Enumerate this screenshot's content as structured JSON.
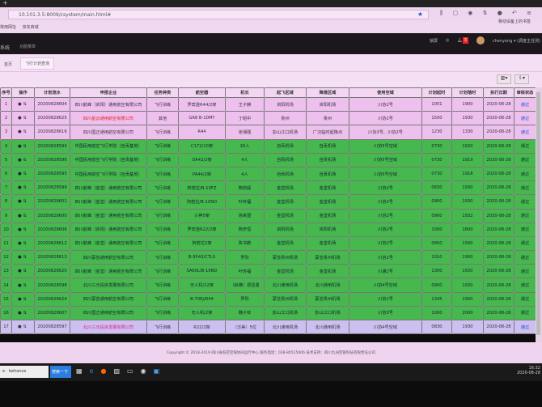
{
  "browser": {
    "url": "10.101.3.5:8009/csystem/main.html#",
    "bookmarks": [
      "常用网址",
      "京东商城"
    ],
    "mobile_bookmarks": "移动设备上的书签"
  },
  "header": {
    "system": "系统",
    "menu": "功能菜单",
    "lock": "锁屏",
    "notifications": "3",
    "user": "chenyong ▾ (调度主任测)"
  },
  "tabs": {
    "home": "首页",
    "active": "飞行计划查询"
  },
  "table": {
    "columns": [
      "序号",
      "操作",
      "计划流水",
      "申报企业",
      "任务种类",
      "航空器",
      "机长",
      "起飞区域",
      "降落区域",
      "使用空域",
      "计划起时",
      "计划落时",
      "执行日期",
      "审核状态"
    ],
    "rows": [
      {
        "no": "1",
        "id": "20200828604",
        "company": "四川航峰（资阳）通用航空有限公司",
        "red": false,
        "task": "飞行训练",
        "aircraft": "罗宾逊R44/2架",
        "captain": "王子麒",
        "from": "资阳机场",
        "to": "资阳机场",
        "airspace": "川协2号",
        "start": "1001",
        "end": "1900",
        "date": "2020-08-28",
        "status": "通过",
        "color": "pink"
      },
      {
        "no": "2",
        "id": "20200828625",
        "company": "四川星云通用航空有限公司",
        "red": true,
        "task": "其他",
        "aircraft": "GA8 B-10MY",
        "captain": "丁昭中",
        "from": "贵州",
        "to": "贵州",
        "airspace": "川协1号",
        "start": "1500",
        "end": "1930",
        "date": "2020-08-28",
        "status": "通过",
        "color": "pink"
      },
      {
        "no": "3",
        "id": "20200828616",
        "company": "四川国正通用航空有限公司",
        "red": false,
        "task": "飞行训练",
        "aircraft": "R44",
        "captain": "张湘强",
        "from": "彭山江口机场",
        "to": "广汉临时起降点",
        "airspace": "川协3号、川协2号",
        "start": "1230",
        "end": "1330",
        "date": "2020-08-28",
        "status": "通过",
        "color": "pink"
      },
      {
        "no": "4",
        "id": "20200828594",
        "company": "中国民用航空飞行学院（自贡基地）",
        "red": true,
        "task": "飞行训练",
        "aircraft": "C172/10架",
        "captain": "16人",
        "from": "自贡机场",
        "to": "自贡机场",
        "airspace": "川协5号空域",
        "start": "0730",
        "end": "1920",
        "date": "2020-08-28",
        "status": "通过",
        "color": "green"
      },
      {
        "no": "5",
        "id": "20200828596",
        "company": "中国民用航空飞行学院（自贡基地）",
        "red": true,
        "task": "飞行训练",
        "aircraft": "DA42/2架",
        "captain": "4人",
        "from": "自贡机场",
        "to": "自贡机场",
        "airspace": "川协5号空域",
        "start": "0730",
        "end": "1919",
        "date": "2020-08-28",
        "status": "通过",
        "color": "green"
      },
      {
        "no": "6",
        "id": "20200828595",
        "company": "中国民用航空飞行学院（自贡基地）",
        "red": true,
        "task": "飞行训练",
        "aircraft": "PA44/2架",
        "captain": "4人",
        "from": "自贡机场",
        "to": "自贡机场",
        "airspace": "川协5号空域",
        "start": "0730",
        "end": "1918",
        "date": "2020-08-28",
        "status": "通过",
        "color": "green"
      },
      {
        "no": "7",
        "id": "20200828599",
        "company": "四川航峰（金堂）通用航空有限公司",
        "red": true,
        "task": "飞行训练",
        "aircraft": "阿若拉/B-10FZ",
        "captain": "熊前超",
        "from": "金堂机场",
        "to": "金堂机场",
        "airspace": "川协2号",
        "start": "0830",
        "end": "1930",
        "date": "2020-08-28",
        "status": "通过",
        "color": "green"
      },
      {
        "no": "8",
        "id": "20200828601",
        "company": "四川航峰（金堂）通用航空有限公司",
        "red": true,
        "task": "飞行训练",
        "aircraft": "阿若拉/B-10ND",
        "captain": "叶传福",
        "from": "金堂机场",
        "to": "金堂机场",
        "airspace": "川协2号",
        "start": "0900",
        "end": "1930",
        "date": "2020-08-28",
        "status": "通过",
        "color": "green"
      },
      {
        "no": "9",
        "id": "20200828600",
        "company": "四川航峰（金堂）通用航空有限公司",
        "red": true,
        "task": "飞行训练",
        "aircraft": "火神5架",
        "captain": "徐来盟",
        "from": "金堂机场",
        "to": "金堂机场",
        "airspace": "川协2号",
        "start": "0900",
        "end": "1932",
        "date": "2020-08-28",
        "status": "通过",
        "color": "green"
      },
      {
        "no": "10",
        "id": "20200828606",
        "company": "四川航峰（资阳）通用航空有限公司",
        "red": false,
        "task": "飞行训练",
        "aircraft": "罗宾逊R22/2架",
        "captain": "熊彦恒",
        "from": "资阳机场",
        "to": "资阳机场",
        "airspace": "川协2号",
        "start": "1000",
        "end": "1800",
        "date": "2020-08-28",
        "status": "通过",
        "color": "green"
      },
      {
        "no": "11",
        "id": "20200828612",
        "company": "四川航峰（金堂）通用航空有限公司",
        "red": true,
        "task": "飞行训练",
        "aircraft": "阿若拉2架",
        "captain": "陈书鹏",
        "from": "金堂机场",
        "to": "金堂机场",
        "airspace": "川协2号",
        "start": "0950",
        "end": "1930",
        "date": "2020-08-28",
        "status": "通过",
        "color": "green"
      },
      {
        "no": "12",
        "id": "20200828613",
        "company": "四川蒙芸通用航空有限公司",
        "red": false,
        "task": "飞行训练",
        "aircraft": "B-9543/CTLS",
        "captain": "罗烈",
        "from": "蒙芸贵州机场",
        "to": "蒙芸贵州机场",
        "airspace": "川协1号",
        "start": "1010",
        "end": "1900",
        "date": "2020-08-28",
        "status": "通过",
        "color": "green"
      },
      {
        "no": "13",
        "id": "20200828620",
        "company": "四川航峰（金堂）通用航空有限公司",
        "red": false,
        "task": "飞行训练",
        "aircraft": "SA60L/B-10ND",
        "captain": "叶传福",
        "from": "金堂机场",
        "to": "金堂机场",
        "airspace": "川通2号",
        "start": "1300",
        "end": "1500",
        "date": "2020-08-28",
        "status": "通过",
        "color": "green"
      },
      {
        "no": "14",
        "id": "20200828598",
        "company": "北川三元投资发展有限公司",
        "red": true,
        "task": "飞行训练",
        "aircraft": "无人机/12架",
        "captain": "（纵横）郑显勇",
        "from": "北川通用机场",
        "to": "北川通用机场",
        "airspace": "川协4号空域",
        "start": "0900",
        "end": "1930",
        "date": "2020-08-28",
        "status": "通过",
        "color": "green"
      },
      {
        "no": "15",
        "id": "20200828624",
        "company": "四川蒙芸通用航空有限公司",
        "red": false,
        "task": "飞行训练",
        "aircraft": "B-70EJ/R44",
        "captain": "罗烈",
        "from": "蒙芸贵州机场",
        "to": "蒙芸贵州机场",
        "airspace": "川协1号",
        "start": "1345",
        "end": "1900",
        "date": "2020-08-28",
        "status": "通过",
        "color": "green"
      },
      {
        "no": "16",
        "id": "20200828607",
        "company": "四川国正通用航空有限公司",
        "red": true,
        "task": "飞行训练",
        "aircraft": "无人机/2架",
        "captain": "魏子钦",
        "from": "彭山江口机场",
        "to": "彭山江口机场",
        "airspace": "川协3号",
        "start": "1000",
        "end": "2000",
        "date": "2020-08-28",
        "status": "通过",
        "color": "green"
      },
      {
        "no": "17",
        "id": "20200828597",
        "company": "北川三元投资发展有限公司",
        "red": true,
        "task": "飞行训练",
        "aircraft": "R22/2架",
        "captain": "（泛美）5位",
        "from": "北川通用机场",
        "to": "北川通用机场",
        "airspace": "川协4号空域",
        "start": "0830",
        "end": "1930",
        "date": "2020-08-28",
        "status": "通过",
        "color": "lav"
      }
    ]
  },
  "footer": {
    "text": "Copyright © 2018-2019 四川省低空空域协同运行中心  服务电话：028-80515006  技术支持：四川九洲空管科技有限责任公司"
  },
  "taskbar": {
    "search": "behance",
    "search_button": "搜索一下",
    "time": "16:32",
    "date": "2020-08-28"
  }
}
